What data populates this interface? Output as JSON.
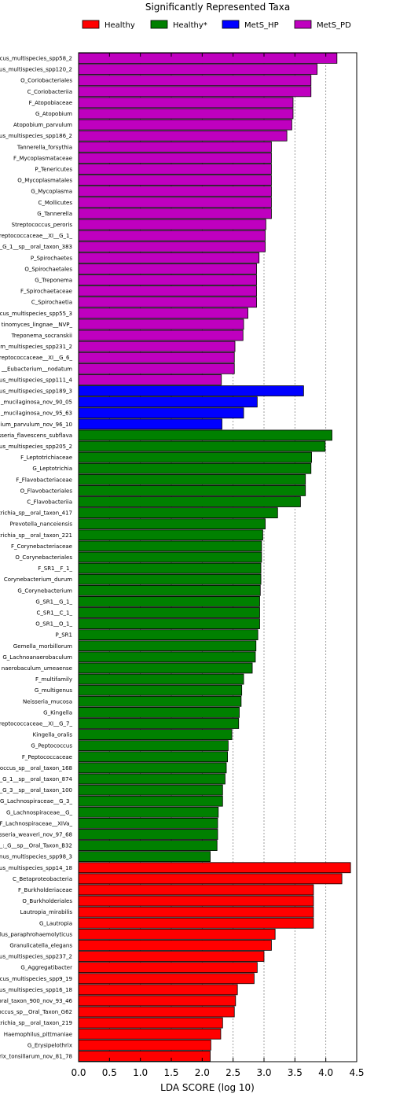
{
  "chart_data": {
    "type": "bar",
    "orientation": "horizontal",
    "title": "Significantly Represented Taxa",
    "xlabel": "LDA SCORE (log 10)",
    "ylabel": "",
    "xlim": [
      0,
      4.5
    ],
    "xticks": [
      "0.0",
      "0.5",
      "1.0",
      "1.5",
      "2.0",
      "2.5",
      "3.0",
      "3.5",
      "4.0",
      "4.5"
    ],
    "grid": "vertical dashed",
    "legend_position": "top",
    "legend": [
      {
        "name": "Healthy",
        "color": "#ff0000"
      },
      {
        "name": "Healthy*",
        "color": "#008000"
      },
      {
        "name": "MetS_HP",
        "color": "#0000ff"
      },
      {
        "name": "MetS_PD",
        "color": "#bf00bf"
      }
    ],
    "bars": [
      {
        "label": "cus_multispecies_spp58_2",
        "value": 4.18,
        "group": 3
      },
      {
        "label": "us_multispecies_spp120_2",
        "value": 3.86,
        "group": 3
      },
      {
        "label": "O_Coriobacteriales",
        "value": 3.76,
        "group": 3
      },
      {
        "label": "C_Coriobacteriia",
        "value": 3.76,
        "group": 3
      },
      {
        "label": "F_Atopobiaceae",
        "value": 3.47,
        "group": 3
      },
      {
        "label": "G_Atopobium",
        "value": 3.47,
        "group": 3
      },
      {
        "label": "Atopobium_parvulum",
        "value": 3.45,
        "group": 3
      },
      {
        "label": "us_multispecies_spp186_2",
        "value": 3.37,
        "group": 3
      },
      {
        "label": "Tannerella_forsythia",
        "value": 3.12,
        "group": 3
      },
      {
        "label": "F_Mycoplasmataceae",
        "value": 3.12,
        "group": 3
      },
      {
        "label": "P_Tenericutes",
        "value": 3.12,
        "group": 3
      },
      {
        "label": "O_Mycoplasmatales",
        "value": 3.12,
        "group": 3
      },
      {
        "label": "G_Mycoplasma",
        "value": 3.12,
        "group": 3
      },
      {
        "label": "C_Mollicutes",
        "value": 3.12,
        "group": 3
      },
      {
        "label": "G_Tannerella",
        "value": 3.12,
        "group": 3
      },
      {
        "label": "Streptococcus_peroris",
        "value": 3.03,
        "group": 3
      },
      {
        "label": "treptococcaceae__XI__G_1_",
        "value": 3.02,
        "group": 3
      },
      {
        "label": "_G_1__sp__oral_taxon_383",
        "value": 3.02,
        "group": 3
      },
      {
        "label": "P_Spirochaetes",
        "value": 2.92,
        "group": 3
      },
      {
        "label": "O_Spirochaetales",
        "value": 2.88,
        "group": 3
      },
      {
        "label": "G_Treponema",
        "value": 2.88,
        "group": 3
      },
      {
        "label": "F_Spirochaetaceae",
        "value": 2.88,
        "group": 3
      },
      {
        "label": "C_Spirochaetia",
        "value": 2.88,
        "group": 3
      },
      {
        "label": "cus_multispecies_spp55_3",
        "value": 2.74,
        "group": 3
      },
      {
        "label": "tinomyces_lingnae__NVP_",
        "value": 2.67,
        "group": 3
      },
      {
        "label": "Treponema_socranskii",
        "value": 2.66,
        "group": 3
      },
      {
        "label": "m_multispecies_spp231_2",
        "value": 2.53,
        "group": 3
      },
      {
        "label": "treptococcaceae__XI__G_6_",
        "value": 2.52,
        "group": 3
      },
      {
        "label": "__Eubacterium__nodatum",
        "value": 2.52,
        "group": 3
      },
      {
        "label": "us_multispecies_spp111_4",
        "value": 2.31,
        "group": 3
      },
      {
        "label": "us_multispecies_spp189_3",
        "value": 3.64,
        "group": 2
      },
      {
        "label": "_mucilaginosa_nov_90_05",
        "value": 2.89,
        "group": 2
      },
      {
        "label": "_mucilaginosa_nov_95_63",
        "value": 2.67,
        "group": 2
      },
      {
        "label": "lium_parvulum_nov_96_10",
        "value": 2.32,
        "group": 2
      },
      {
        "label": "sseria_flavescens_subflava",
        "value": 4.1,
        "group": 1
      },
      {
        "label": "us_multispecies_spp205_2",
        "value": 3.99,
        "group": 1
      },
      {
        "label": "F_Leptotrichiaceae",
        "value": 3.77,
        "group": 1
      },
      {
        "label": "G_Leptotrichia",
        "value": 3.76,
        "group": 1
      },
      {
        "label": "F_Flavobacteriaceae",
        "value": 3.67,
        "group": 1
      },
      {
        "label": "O_Flavobacteriales",
        "value": 3.67,
        "group": 1
      },
      {
        "label": "C_Flavobacteriia",
        "value": 3.59,
        "group": 1
      },
      {
        "label": "trichia_sp__oral_taxon_417",
        "value": 3.22,
        "group": 1
      },
      {
        "label": "Prevotella_nanceiensis",
        "value": 3.02,
        "group": 1
      },
      {
        "label": "trichia_sp__oral_taxon_221",
        "value": 2.98,
        "group": 1
      },
      {
        "label": "F_Corynebacteriaceae",
        "value": 2.96,
        "group": 1
      },
      {
        "label": "O_Corynebacteriales",
        "value": 2.96,
        "group": 1
      },
      {
        "label": "F_SR1__F_1_",
        "value": 2.95,
        "group": 1
      },
      {
        "label": "Corynebacterium_durum",
        "value": 2.95,
        "group": 1
      },
      {
        "label": "G_Corynebacterium",
        "value": 2.94,
        "group": 1
      },
      {
        "label": "G_SR1__G_1_",
        "value": 2.93,
        "group": 1
      },
      {
        "label": "C_SR1__C_1_",
        "value": 2.93,
        "group": 1
      },
      {
        "label": "O_SR1__O_1_",
        "value": 2.93,
        "group": 1
      },
      {
        "label": "P_SR1",
        "value": 2.9,
        "group": 1
      },
      {
        "label": "Gemella_morbillorum",
        "value": 2.87,
        "group": 1
      },
      {
        "label": "G_Lachnoanaerobaculum",
        "value": 2.86,
        "group": 1
      },
      {
        "label": "naerobaculum_umeaense",
        "value": 2.81,
        "group": 1
      },
      {
        "label": "F_multifamily",
        "value": 2.67,
        "group": 1
      },
      {
        "label": "G_multigenus",
        "value": 2.64,
        "group": 1
      },
      {
        "label": "Neisseria_mucosa",
        "value": 2.63,
        "group": 1
      },
      {
        "label": "G_Kingella",
        "value": 2.6,
        "group": 1
      },
      {
        "label": "treptococcaceae__XI__G_7_",
        "value": 2.59,
        "group": 1
      },
      {
        "label": "Kingella_oralis",
        "value": 2.48,
        "group": 1
      },
      {
        "label": "G_Peptococcus",
        "value": 2.42,
        "group": 1
      },
      {
        "label": "F_Peptococcaceae",
        "value": 2.41,
        "group": 1
      },
      {
        "label": "occus_sp__oral_taxon_168",
        "value": 2.39,
        "group": 1
      },
      {
        "label": "_G_1__sp__oral_taxon_874",
        "value": 2.37,
        "group": 1
      },
      {
        "label": "_G_3__sp__oral_taxon_100",
        "value": 2.33,
        "group": 1
      },
      {
        "label": "G_Lachnospiraceae__G_3_",
        "value": 2.33,
        "group": 1
      },
      {
        "label": "G_Lachnospiraceae__G_",
        "value": 2.26,
        "group": 1
      },
      {
        "label": "F_Lachnospiraceae__XIVa_",
        "value": 2.25,
        "group": 1
      },
      {
        "label": "sseria_weaveri_nov_97_68",
        "value": 2.25,
        "group": 1
      },
      {
        "label": "_:_G__sp__Oral_Taxon_B32",
        "value": 2.24,
        "group": 1
      },
      {
        "label": "nus_multispecies_spp98_3",
        "value": 2.13,
        "group": 1
      },
      {
        "label": "us_multispecies_spp14_18",
        "value": 4.4,
        "group": 0
      },
      {
        "label": "C_Betaproteobacteria",
        "value": 4.26,
        "group": 0
      },
      {
        "label": "F_Burkholderiaceae",
        "value": 3.8,
        "group": 0
      },
      {
        "label": "O_Burkholderiales",
        "value": 3.8,
        "group": 0
      },
      {
        "label": "Lautropia_mirabilis",
        "value": 3.8,
        "group": 0
      },
      {
        "label": "G_Lautropia",
        "value": 3.8,
        "group": 0
      },
      {
        "label": "lus_paraphrohaemolyticus",
        "value": 3.18,
        "group": 0
      },
      {
        "label": "Granulicatella_elegans",
        "value": 3.12,
        "group": 0
      },
      {
        "label": "us_multispecies_spp237_2",
        "value": 3.0,
        "group": 0
      },
      {
        "label": "G_Aggregatibacter",
        "value": 2.89,
        "group": 0
      },
      {
        "label": "occus_multispecies_spp9_19",
        "value": 2.84,
        "group": 0
      },
      {
        "label": "us_multispecies_spp16_18",
        "value": 2.57,
        "group": 0
      },
      {
        "label": "oral_taxon_900_nov_93_46",
        "value": 2.54,
        "group": 0
      },
      {
        "label": "occus_sp__Oral_Taxon_G62",
        "value": 2.52,
        "group": 0
      },
      {
        "label": "trichia_sp__oral_taxon_219",
        "value": 2.33,
        "group": 0
      },
      {
        "label": "Haemophilus_pittmaniae",
        "value": 2.3,
        "group": 0
      },
      {
        "label": "G_Erysipelothrix",
        "value": 2.14,
        "group": 0
      },
      {
        "label": "rix_tonsillarum_nov_81_78",
        "value": 2.13,
        "group": 0
      }
    ]
  }
}
